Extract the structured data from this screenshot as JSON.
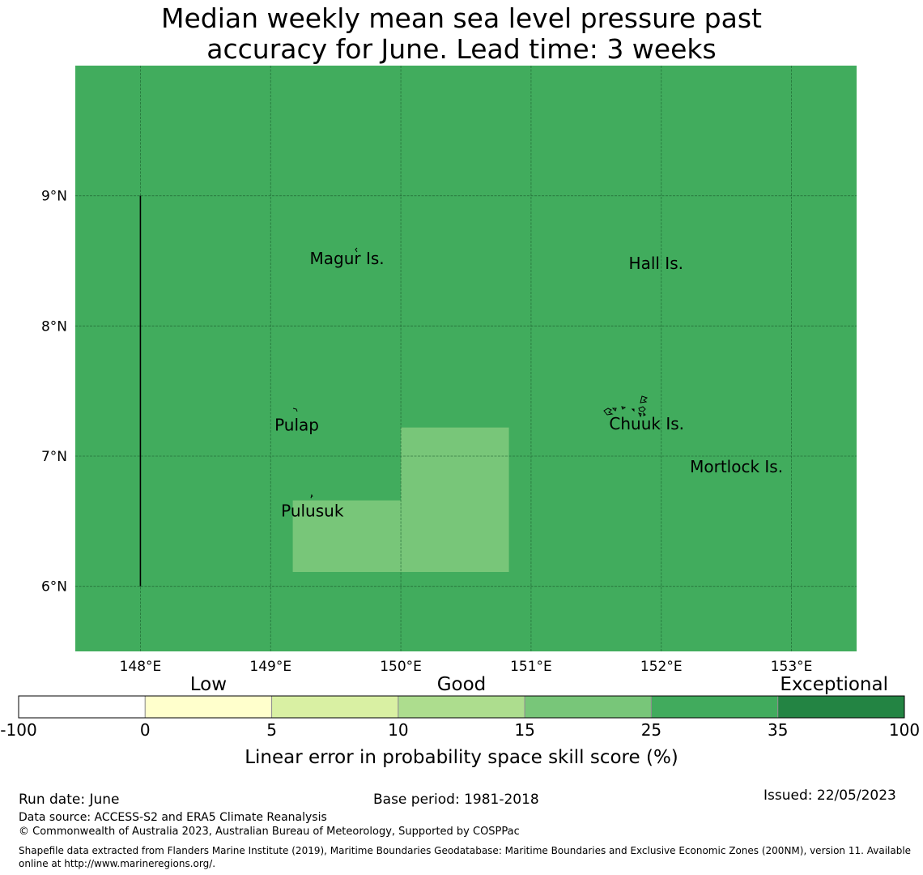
{
  "title": {
    "line1": "Median weekly mean sea level pressure past",
    "line2": "accuracy for June. Lead time: 3 weeks"
  },
  "map": {
    "lon_range": [
      147.5,
      153.5
    ],
    "lat_range": [
      5.5,
      10.0
    ],
    "background_color": "#41ac5d",
    "lon_ticks": [
      {
        "value": 148,
        "label": "148°E"
      },
      {
        "value": 149,
        "label": "149°E"
      },
      {
        "value": 150,
        "label": "150°E"
      },
      {
        "value": 151,
        "label": "151°E"
      },
      {
        "value": 152,
        "label": "152°E"
      },
      {
        "value": 153,
        "label": "153°E"
      }
    ],
    "lat_ticks": [
      {
        "value": 9,
        "label": "9°N"
      },
      {
        "value": 8,
        "label": "8°N"
      },
      {
        "value": 7,
        "label": "7°N"
      },
      {
        "value": 6,
        "label": "6°N"
      }
    ],
    "cells": [
      {
        "lon": [
          149.17,
          150.0
        ],
        "lat": [
          6.11,
          6.66
        ],
        "color": "#78c679",
        "category": "15-25"
      },
      {
        "lon": [
          150.0,
          150.83
        ],
        "lat": [
          6.11,
          7.22
        ],
        "color": "#78c679",
        "category": "15-25"
      }
    ],
    "boundary_line": {
      "lon": 148.0,
      "lat": [
        6.0,
        9.0
      ]
    },
    "places": [
      {
        "name": "Magur Is.",
        "lon": 149.3,
        "lat": 8.52
      },
      {
        "name": "Hall Is.",
        "lon": 151.75,
        "lat": 8.48
      },
      {
        "name": "Pulap",
        "lon": 149.03,
        "lat": 7.24
      },
      {
        "name": "Chuuk Is.",
        "lon": 151.6,
        "lat": 7.25
      },
      {
        "name": "Mortlock Is.",
        "lon": 152.22,
        "lat": 6.92
      },
      {
        "name": "Pulusuk",
        "lon": 149.08,
        "lat": 6.58
      }
    ]
  },
  "colorbar": {
    "category_labels": {
      "low": "Low",
      "good": "Good",
      "exceptional": "Exceptional"
    },
    "bins": [
      {
        "from": "-100",
        "to": "0",
        "color": "#ffffff"
      },
      {
        "from": "0",
        "to": "5",
        "color": "#ffffcc"
      },
      {
        "from": "5",
        "to": "10",
        "color": "#d9f0a3"
      },
      {
        "from": "10",
        "to": "15",
        "color": "#addd8e"
      },
      {
        "from": "15",
        "to": "25",
        "color": "#78c679"
      },
      {
        "from": "25",
        "to": "35",
        "color": "#41ab5d"
      },
      {
        "from": "35",
        "to": "100",
        "color": "#238443"
      }
    ],
    "tick_labels": [
      "-100",
      "0",
      "5",
      "10",
      "15",
      "25",
      "35",
      "100"
    ],
    "xlabel": "Linear error in probability space skill score (%)"
  },
  "footer": {
    "run_date": "Run date: June",
    "base_period": "Base period: 1981-2018",
    "issued": "Issued: 22/05/2023",
    "data_source": "Data source: ACCESS-S2 and ERA5 Climate Reanalysis",
    "copyright": "© Commonwealth of Australia 2023, Australian Bureau of Meteorology, Supported by COSPPac",
    "shapefile_line1": "Shapefile data extracted from Flanders Marine Institute (2019), Maritime Boundaries Geodatabase: Maritime Boundaries and Exclusive Economic Zones (200NM), version 11. Available",
    "shapefile_line2": "online at http://www.marineregions.org/."
  }
}
